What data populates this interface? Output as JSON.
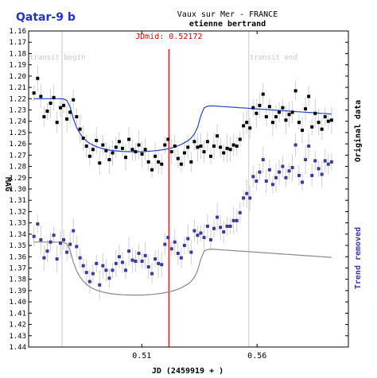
{
  "chart_data": {
    "type": "scatter",
    "title": "Qatar-9 b",
    "observer_site": "Vaux sur Mer - FRANCE",
    "observer_name": "etienne bertrand",
    "xlabel": "JD (2459919 + )",
    "ylabel": "MAG",
    "right_label_top": "Original data",
    "right_label_bottom": "Trend removed",
    "jdmid_label": "JDmid: 0.52172",
    "jdmid": 0.52172,
    "transit_begin_label": "transit begin",
    "transit_end_label": "transit end",
    "transit_begin": 0.4754,
    "transit_end": 0.5564,
    "xlim": [
      0.4609,
      0.5996
    ],
    "ylim": [
      1.16,
      1.44
    ],
    "xticks": [
      0.51,
      0.56
    ],
    "xtick_labels": [
      "0.51",
      "0.56"
    ],
    "yticks": [
      1.16,
      1.17,
      1.18,
      1.19,
      1.2,
      1.21,
      1.22,
      1.23,
      1.24,
      1.25,
      1.26,
      1.27,
      1.28,
      1.29,
      1.3,
      1.31,
      1.32,
      1.33,
      1.34,
      1.35,
      1.36,
      1.37,
      1.38,
      1.39,
      1.4,
      1.41,
      1.42,
      1.43,
      1.44
    ],
    "ytick_labels": [
      "1.16",
      "1.17",
      "1.18",
      "1.19",
      "1.20",
      "1.21",
      "1.22",
      "1.23",
      "1.24",
      "1.25",
      "1.26",
      "1.27",
      "1.28",
      "1.29",
      "1.30",
      "1.31",
      "1.32",
      "1.33",
      "1.34",
      "1.35",
      "1.36",
      "1.37",
      "1.38",
      "1.39",
      "1.40",
      "1.41",
      "1.42",
      "1.43",
      "1.44"
    ],
    "series": [
      {
        "name": "Original data",
        "color": "#000000",
        "x": [
          0.4632,
          0.4648,
          0.4662,
          0.4676,
          0.469,
          0.4704,
          0.4718,
          0.4732,
          0.4747,
          0.4761,
          0.4775,
          0.4789,
          0.4803,
          0.4817,
          0.4832,
          0.4846,
          0.486,
          0.4874,
          0.4888,
          0.4903,
          0.4917,
          0.4931,
          0.4945,
          0.4959,
          0.4973,
          0.4988,
          0.5002,
          0.5016,
          0.503,
          0.5044,
          0.5059,
          0.5073,
          0.5087,
          0.5101,
          0.5115,
          0.5129,
          0.5144,
          0.5158,
          0.5172,
          0.5186,
          0.52,
          0.5214,
          0.5229,
          0.5243,
          0.5257,
          0.5271,
          0.5285,
          0.53,
          0.5314,
          0.5328,
          0.5342,
          0.5356,
          0.537,
          0.5385,
          0.5399,
          0.5413,
          0.5427,
          0.5441,
          0.5455,
          0.547,
          0.5484,
          0.5498,
          0.5512,
          0.5526,
          0.5541,
          0.5555,
          0.5569,
          0.5583,
          0.5597,
          0.5611,
          0.5626,
          0.564,
          0.5654,
          0.5668,
          0.5682,
          0.5696,
          0.5711,
          0.5725,
          0.5739,
          0.5753,
          0.5767,
          0.5782,
          0.5796,
          0.581,
          0.5824,
          0.5838,
          0.5852,
          0.5867,
          0.5881,
          0.5895,
          0.5909,
          0.5923
        ],
        "y": [
          1.215,
          1.202,
          1.218,
          1.236,
          1.231,
          1.224,
          1.219,
          1.241,
          1.228,
          1.226,
          1.238,
          1.232,
          1.221,
          1.236,
          1.247,
          1.255,
          1.262,
          1.271,
          1.265,
          1.257,
          1.277,
          1.261,
          1.266,
          1.274,
          1.268,
          1.263,
          1.258,
          1.264,
          1.272,
          1.256,
          1.265,
          1.267,
          1.261,
          1.269,
          1.265,
          1.276,
          1.283,
          1.271,
          1.276,
          1.278,
          1.261,
          1.256,
          1.267,
          1.262,
          1.273,
          1.278,
          1.268,
          1.263,
          1.276,
          1.258,
          1.263,
          1.262,
          1.267,
          1.258,
          1.271,
          1.262,
          1.253,
          1.263,
          1.268,
          1.264,
          1.265,
          1.261,
          1.262,
          1.256,
          1.244,
          1.241,
          1.246,
          1.228,
          1.233,
          1.226,
          1.216,
          1.236,
          1.227,
          1.241,
          1.236,
          1.232,
          1.228,
          1.239,
          1.234,
          1.232,
          1.213,
          1.241,
          1.248,
          1.229,
          1.218,
          1.245,
          1.233,
          1.241,
          1.247,
          1.236,
          1.24,
          1.239
        ],
        "trend": [
          1.22,
          1.22,
          1.22,
          1.22,
          1.22,
          1.22,
          1.22,
          1.22,
          1.2201,
          1.2203,
          1.2216,
          1.2275,
          1.2377,
          1.2455,
          1.2509,
          1.2547,
          1.2575,
          1.2596,
          1.2612,
          1.2625,
          1.2635,
          1.2643,
          1.2649,
          1.2655,
          1.2659,
          1.2662,
          1.2665,
          1.2667,
          1.2668,
          1.2669,
          1.2669,
          1.267,
          1.2669,
          1.2669,
          1.2668,
          1.2666,
          1.2664,
          1.2661,
          1.2658,
          1.2654,
          1.2649,
          1.2643,
          1.2636,
          1.2627,
          1.2617,
          1.2605,
          1.259,
          1.2572,
          1.2548,
          1.2512,
          1.2454,
          1.2351,
          1.2281,
          1.2266,
          1.2264,
          1.2264,
          1.2266,
          1.2268,
          1.227,
          1.2272,
          1.2274,
          1.2276,
          1.2278,
          1.228,
          1.2282,
          1.2284,
          1.2286,
          1.2288,
          1.229,
          1.2292,
          1.2294,
          1.2296,
          1.2298,
          1.23,
          1.2302,
          1.2304,
          1.2306,
          1.2308,
          1.231,
          1.2312,
          1.2314,
          1.2316,
          1.2318,
          1.232,
          1.2322,
          1.2324,
          1.2326,
          1.2328,
          1.233,
          1.2332,
          1.2334,
          1.2336
        ]
      },
      {
        "name": "Trend removed",
        "color": "#3a3a9a",
        "x": [
          0.4632,
          0.4648,
          0.4662,
          0.4676,
          0.469,
          0.4704,
          0.4718,
          0.4732,
          0.4747,
          0.4761,
          0.4775,
          0.4789,
          0.4803,
          0.4817,
          0.4832,
          0.4846,
          0.486,
          0.4874,
          0.4888,
          0.4903,
          0.4917,
          0.4931,
          0.4945,
          0.4959,
          0.4973,
          0.4988,
          0.5002,
          0.5016,
          0.503,
          0.5044,
          0.5059,
          0.5073,
          0.5087,
          0.5101,
          0.5115,
          0.5129,
          0.5144,
          0.5158,
          0.5172,
          0.5186,
          0.52,
          0.5214,
          0.5229,
          0.5243,
          0.5257,
          0.5271,
          0.5285,
          0.53,
          0.5314,
          0.5328,
          0.5342,
          0.5356,
          0.537,
          0.5385,
          0.5399,
          0.5413,
          0.5427,
          0.5441,
          0.5455,
          0.547,
          0.5484,
          0.5498,
          0.5512,
          0.5526,
          0.5541,
          0.5555,
          0.5569,
          0.5583,
          0.5597,
          0.5611,
          0.5626,
          0.564,
          0.5654,
          0.5668,
          0.5682,
          0.5696,
          0.5711,
          0.5725,
          0.5739,
          0.5753,
          0.5767,
          0.5782,
          0.5796,
          0.581,
          0.5824,
          0.5838,
          0.5852,
          0.5867,
          0.5881,
          0.5895,
          0.5909,
          0.5923
        ],
        "y": [
          1.342,
          1.331,
          1.345,
          1.361,
          1.355,
          1.347,
          1.341,
          1.362,
          1.348,
          1.345,
          1.356,
          1.349,
          1.337,
          1.351,
          1.361,
          1.368,
          1.374,
          1.382,
          1.375,
          1.366,
          1.385,
          1.368,
          1.372,
          1.379,
          1.372,
          1.366,
          1.36,
          1.365,
          1.372,
          1.355,
          1.363,
          1.364,
          1.357,
          1.364,
          1.359,
          1.369,
          1.375,
          1.362,
          1.366,
          1.367,
          1.349,
          1.343,
          1.353,
          1.347,
          1.357,
          1.361,
          1.35,
          1.344,
          1.356,
          1.337,
          1.341,
          1.339,
          1.343,
          1.333,
          1.345,
          1.335,
          1.325,
          1.334,
          1.338,
          1.333,
          1.333,
          1.328,
          1.328,
          1.321,
          1.308,
          1.304,
          1.308,
          1.289,
          1.293,
          1.285,
          1.274,
          1.293,
          1.283,
          1.296,
          1.29,
          1.285,
          1.28,
          1.29,
          1.284,
          1.281,
          1.261,
          1.288,
          1.294,
          1.274,
          1.262,
          1.288,
          1.275,
          1.282,
          1.287,
          1.275,
          1.278,
          1.276
        ],
        "trend": [
          1.347,
          1.347,
          1.347,
          1.347,
          1.347,
          1.347,
          1.347,
          1.347,
          1.3471,
          1.3473,
          1.3486,
          1.3545,
          1.3647,
          1.3725,
          1.3779,
          1.3817,
          1.3845,
          1.3866,
          1.3882,
          1.3895,
          1.3905,
          1.3913,
          1.3919,
          1.3925,
          1.3929,
          1.3932,
          1.3935,
          1.3937,
          1.3938,
          1.3939,
          1.3939,
          1.394,
          1.3939,
          1.3939,
          1.3938,
          1.3936,
          1.3934,
          1.3931,
          1.3928,
          1.3924,
          1.3919,
          1.3913,
          1.3906,
          1.3897,
          1.3887,
          1.3875,
          1.386,
          1.3842,
          1.3818,
          1.3782,
          1.3724,
          1.3621,
          1.3551,
          1.3536,
          1.3534,
          1.3534,
          1.3536,
          1.3538,
          1.354,
          1.3542,
          1.3544,
          1.3546,
          1.3548,
          1.355,
          1.3552,
          1.3554,
          1.3556,
          1.3558,
          1.356,
          1.3562,
          1.3564,
          1.3566,
          1.3568,
          1.357,
          1.3572,
          1.3574,
          1.3576,
          1.3578,
          1.358,
          1.3582,
          1.3584,
          1.3586,
          1.3588,
          1.359,
          1.3592,
          1.3594,
          1.3596,
          1.3598,
          1.36,
          1.3602,
          1.3604,
          1.3606
        ]
      }
    ]
  },
  "colors": {
    "title": "#2233cc",
    "jdmid": "#dd0000",
    "axis": "#000000",
    "transit_lines": "#c8c8c8",
    "errorbars": "#cfcfcf",
    "fit_top": "#2244cc",
    "fit_bottom": "#888888",
    "right_label_top": "#000000",
    "right_label_bottom": "#3a3a9a"
  }
}
